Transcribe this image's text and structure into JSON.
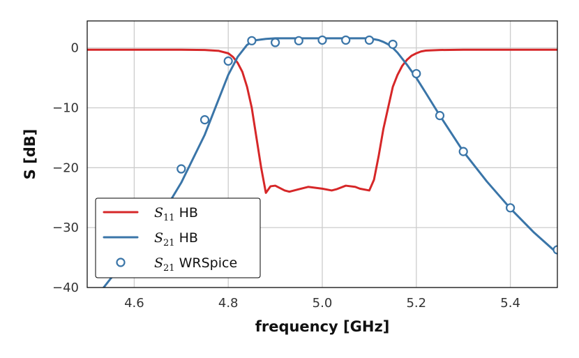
{
  "chart_data": {
    "type": "line",
    "xlabel": "frequency [GHz]",
    "ylabel": "S [dB]",
    "xlim": [
      4.5,
      5.5
    ],
    "ylim": [
      -40,
      4.5
    ],
    "xticks": [
      4.6,
      4.8,
      5.0,
      5.2,
      5.4
    ],
    "xtick_labels": [
      "4.6",
      "4.8",
      "5.0",
      "5.2",
      "5.4"
    ],
    "yticks": [
      0,
      -10,
      -20,
      -30,
      -40
    ],
    "ytick_labels": [
      "0",
      "−10",
      "−20",
      "−30",
      "−40"
    ],
    "grid": true,
    "legend_position": "bottom-left",
    "colors": {
      "s11": "#d62728",
      "s21": "#3a75a8"
    },
    "series": [
      {
        "name": "S11 HB",
        "symbol": "S",
        "subscript": "11",
        "suffix": " HB",
        "style": "line",
        "color": "#d62728",
        "x": [
          4.5,
          4.6,
          4.7,
          4.75,
          4.78,
          4.8,
          4.81,
          4.82,
          4.83,
          4.84,
          4.85,
          4.86,
          4.87,
          4.88,
          4.89,
          4.9,
          4.92,
          4.93,
          4.95,
          4.97,
          4.98,
          5.0,
          5.02,
          5.03,
          5.05,
          5.07,
          5.08,
          5.1,
          5.11,
          5.12,
          5.13,
          5.14,
          5.15,
          5.16,
          5.17,
          5.18,
          5.19,
          5.2,
          5.21,
          5.22,
          5.25,
          5.3,
          5.4,
          5.5
        ],
        "y": [
          -0.3,
          -0.3,
          -0.3,
          -0.35,
          -0.5,
          -0.9,
          -1.5,
          -2.5,
          -4,
          -6.5,
          -10,
          -15,
          -20,
          -24.2,
          -23.1,
          -23.0,
          -23.8,
          -24.0,
          -23.6,
          -23.2,
          -23.3,
          -23.5,
          -23.8,
          -23.6,
          -23.0,
          -23.2,
          -23.5,
          -23.8,
          -22.0,
          -18.0,
          -13.5,
          -10.0,
          -6.5,
          -4.5,
          -3.0,
          -2.0,
          -1.3,
          -0.9,
          -0.6,
          -0.45,
          -0.35,
          -0.3,
          -0.3,
          -0.3
        ]
      },
      {
        "name": "S21 HB",
        "symbol": "S",
        "subscript": "21",
        "suffix": " HB",
        "style": "line",
        "color": "#3a75a8",
        "x": [
          4.53,
          4.55,
          4.6,
          4.65,
          4.7,
          4.75,
          4.78,
          4.8,
          4.82,
          4.84,
          4.85,
          4.86,
          4.88,
          4.9,
          4.95,
          5.0,
          5.05,
          5.1,
          5.12,
          5.13,
          5.14,
          5.15,
          5.16,
          5.17,
          5.18,
          5.2,
          5.22,
          5.25,
          5.3,
          5.35,
          5.4,
          5.45,
          5.5
        ],
        "y": [
          -40.5,
          -38.5,
          -34,
          -29,
          -22.5,
          -14.5,
          -8.5,
          -4.5,
          -1.5,
          0.5,
          1.0,
          1.3,
          1.5,
          1.6,
          1.6,
          1.6,
          1.6,
          1.6,
          1.3,
          1.0,
          0.6,
          0.0,
          -0.8,
          -1.8,
          -2.8,
          -5.0,
          -7.5,
          -11.3,
          -17.3,
          -22.3,
          -26.8,
          -30.8,
          -34.3
        ]
      },
      {
        "name": "S21 WRSpice",
        "symbol": "S",
        "subscript": "21",
        "suffix": " WRSpice",
        "style": "marker",
        "color": "#3a75a8",
        "x": [
          4.7,
          4.75,
          4.8,
          4.85,
          4.9,
          4.95,
          5.0,
          5.05,
          5.1,
          5.15,
          5.2,
          5.25,
          5.3,
          5.4,
          5.5
        ],
        "y": [
          -20.2,
          -12.0,
          -2.2,
          1.2,
          0.9,
          1.2,
          1.3,
          1.3,
          1.3,
          0.6,
          -4.3,
          -11.3,
          -17.3,
          -26.7,
          -33.7
        ]
      }
    ]
  }
}
